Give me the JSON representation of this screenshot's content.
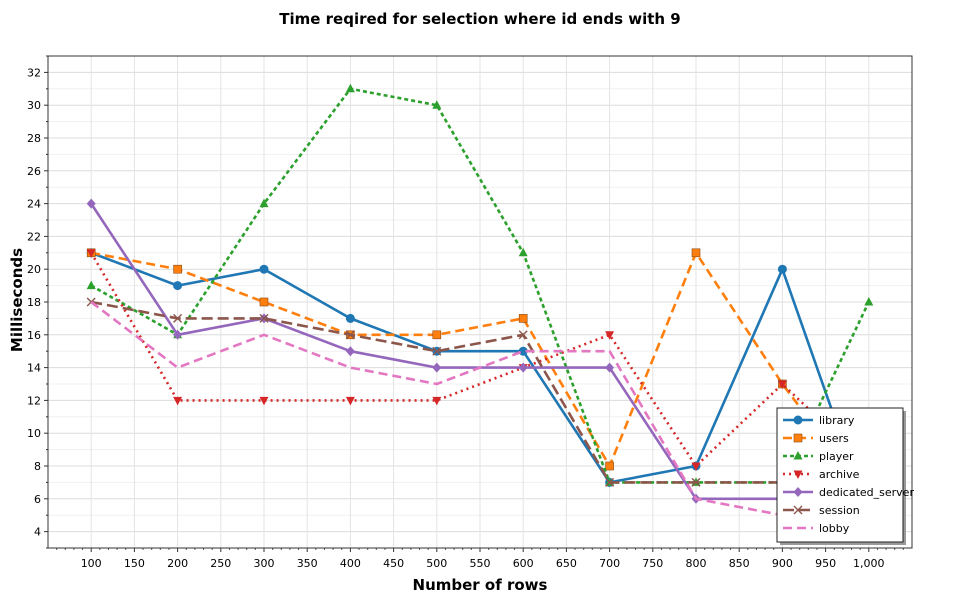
{
  "chart_data": {
    "type": "line",
    "title": "Time reqired for selection where id ends with 9",
    "xlabel": "Number of rows",
    "ylabel": "Milliseconds",
    "xlim": [
      50,
      1050
    ],
    "ylim": [
      3,
      33
    ],
    "xticks": [
      100,
      150,
      200,
      250,
      300,
      350,
      400,
      450,
      500,
      550,
      600,
      650,
      700,
      750,
      800,
      850,
      900,
      950,
      1000
    ],
    "xtick_labels": [
      "100",
      "150",
      "200",
      "250",
      "300",
      "350",
      "400",
      "450",
      "500",
      "550",
      "600",
      "650",
      "700",
      "750",
      "800",
      "850",
      "900",
      "950",
      "1,000"
    ],
    "yticks": [
      4,
      6,
      8,
      10,
      12,
      14,
      16,
      18,
      20,
      22,
      24,
      26,
      28,
      30,
      32
    ],
    "grid": true,
    "legend_position": "bottom-right",
    "x": [
      100,
      200,
      300,
      400,
      500,
      600,
      700,
      800,
      900,
      1000
    ],
    "series": [
      {
        "name": "library",
        "color": "#1f77b4",
        "dash": "solid",
        "marker": "circle",
        "values": [
          21,
          19,
          20,
          17,
          15,
          15,
          7,
          8,
          20,
          5
        ]
      },
      {
        "name": "users",
        "color": "#ff7f0e",
        "dash": "dash",
        "marker": "square",
        "values": [
          21,
          20,
          18,
          16,
          16,
          17,
          8,
          21,
          13,
          6
        ]
      },
      {
        "name": "player",
        "color": "#2ca02c",
        "dash": "dot-dash",
        "marker": "triangle-up",
        "values": [
          19,
          16,
          24,
          31,
          30,
          21,
          7,
          7,
          7,
          18
        ]
      },
      {
        "name": "archive",
        "color": "#d62728",
        "dash": "dot",
        "marker": "triangle-down",
        "values": [
          21,
          12,
          12,
          12,
          12,
          14,
          16,
          8,
          13,
          8
        ]
      },
      {
        "name": "dedicated_server",
        "color": "#9467bd",
        "dash": "solid",
        "marker": "diamond",
        "values": [
          24,
          16,
          17,
          15,
          14,
          14,
          14,
          6,
          6,
          6
        ]
      },
      {
        "name": "session",
        "color": "#8c564b",
        "dash": "long-dash",
        "marker": "x",
        "values": [
          18,
          17,
          17,
          16,
          15,
          16,
          7,
          7,
          7,
          7
        ]
      },
      {
        "name": "lobby",
        "color": "#e377c2",
        "dash": "dash",
        "marker": "none",
        "values": [
          18,
          14,
          16,
          14,
          13,
          15,
          15,
          6,
          5,
          5
        ]
      }
    ]
  }
}
